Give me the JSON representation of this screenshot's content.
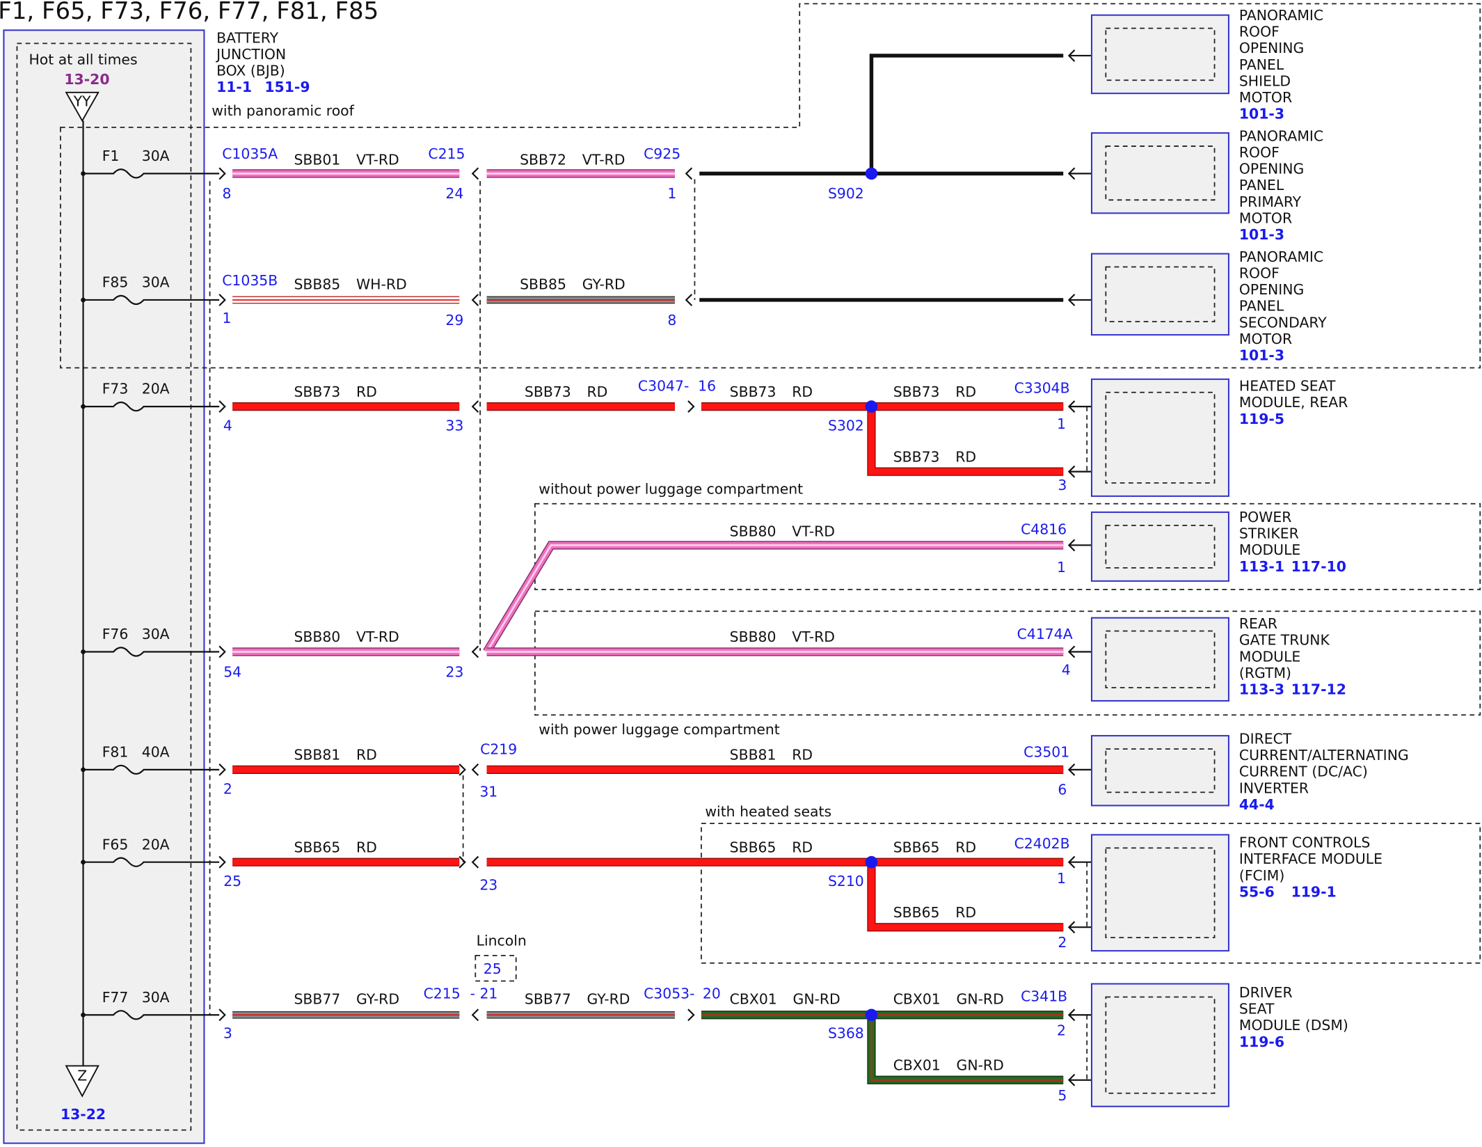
{
  "title": "F1, F65, F73, F76, F77, F81, F85",
  "fuse_box": {
    "name_lines": [
      "BATTERY",
      "JUNCTION",
      "BOX (BJB)"
    ],
    "refs": [
      "11-1",
      "151-9"
    ],
    "feed": "Hot at all times",
    "feed_ref": "13-20",
    "top_symbol": "YY",
    "bottom_symbol": "Z",
    "ground_ref": "13-22"
  },
  "notes": [
    "with panoramic roof",
    "without power luggage compartment",
    "with power luggage compartment",
    "with heated seats"
  ],
  "variant": {
    "label": "Lincoln",
    "pin": "25"
  },
  "fuses": [
    {
      "name": "F1",
      "rating": "30A"
    },
    {
      "name": "F85",
      "rating": "30A"
    },
    {
      "name": "F73",
      "rating": "20A"
    },
    {
      "name": "F76",
      "rating": "30A"
    },
    {
      "name": "F81",
      "rating": "40A"
    },
    {
      "name": "F65",
      "rating": "20A"
    },
    {
      "name": "F77",
      "rating": "30A"
    }
  ],
  "connectors": [
    "C1035A",
    "C215",
    "C925",
    "C1035B",
    "C3047-",
    "C3304B",
    "C4816",
    "C4174A",
    "C219",
    "C3501",
    "C2402B",
    "C215",
    "C3053-",
    "C341B"
  ],
  "pins": [
    "8",
    "24",
    "1",
    "1",
    "29",
    "8",
    "4",
    "33",
    "16",
    "1",
    "3",
    "1",
    "54",
    "23",
    "4",
    "2",
    "31",
    "6",
    "25",
    "23",
    "1",
    "2",
    "3",
    "- 21",
    "20",
    "2",
    "5"
  ],
  "splices": [
    "S902",
    "S302",
    "S210",
    "S368"
  ],
  "wires": [
    {
      "circuit": "SBB01",
      "color": "VT-RD"
    },
    {
      "circuit": "SBB72",
      "color": "VT-RD"
    },
    {
      "circuit": "SBB85",
      "color": "WH-RD"
    },
    {
      "circuit": "SBB85",
      "color": "GY-RD"
    },
    {
      "circuit": "SBB73",
      "color": "RD"
    },
    {
      "circuit": "SBB73",
      "color": "RD"
    },
    {
      "circuit": "SBB73",
      "color": "RD"
    },
    {
      "circuit": "SBB73",
      "color": "RD"
    },
    {
      "circuit": "SBB73",
      "color": "RD"
    },
    {
      "circuit": "SBB80",
      "color": "VT-RD"
    },
    {
      "circuit": "SBB80",
      "color": "VT-RD"
    },
    {
      "circuit": "SBB80",
      "color": "VT-RD"
    },
    {
      "circuit": "SBB81",
      "color": "RD"
    },
    {
      "circuit": "SBB81",
      "color": "RD"
    },
    {
      "circuit": "SBB65",
      "color": "RD"
    },
    {
      "circuit": "SBB65",
      "color": "RD"
    },
    {
      "circuit": "SBB65",
      "color": "RD"
    },
    {
      "circuit": "SBB65",
      "color": "RD"
    },
    {
      "circuit": "SBB77",
      "color": "GY-RD"
    },
    {
      "circuit": "SBB77",
      "color": "GY-RD"
    },
    {
      "circuit": "CBX01",
      "color": "GN-RD"
    },
    {
      "circuit": "CBX01",
      "color": "GN-RD"
    },
    {
      "circuit": "CBX01",
      "color": "GN-RD"
    }
  ],
  "modules": [
    {
      "name_lines": [
        "PANORAMIC",
        "ROOF",
        "OPENING",
        "PANEL",
        "SHIELD",
        "MOTOR"
      ],
      "refs": [
        "101-3"
      ]
    },
    {
      "name_lines": [
        "PANORAMIC",
        "ROOF",
        "OPENING",
        "PANEL",
        "PRIMARY",
        "MOTOR"
      ],
      "refs": [
        "101-3"
      ]
    },
    {
      "name_lines": [
        "PANORAMIC",
        "ROOF",
        "OPENING",
        "PANEL",
        "SECONDARY",
        "MOTOR"
      ],
      "refs": [
        "101-3"
      ]
    },
    {
      "name_lines": [
        "HEATED SEAT",
        "MODULE, REAR"
      ],
      "refs": [
        "119-5"
      ]
    },
    {
      "name_lines": [
        "POWER",
        "STRIKER",
        "MODULE"
      ],
      "refs": [
        "113-1",
        "117-10"
      ]
    },
    {
      "name_lines": [
        "REAR",
        "GATE TRUNK",
        "MODULE",
        "(RGTM)"
      ],
      "refs": [
        "113-3",
        "117-12"
      ]
    },
    {
      "name_lines": [
        "DIRECT",
        "CURRENT/ALTERNATING",
        "CURRENT (DC/AC)",
        "INVERTER"
      ],
      "refs": [
        "44-4"
      ]
    },
    {
      "name_lines": [
        "FRONT CONTROLS",
        "INTERFACE MODULE",
        "(FCIM)"
      ],
      "refs": [
        "55-6",
        "119-1"
      ]
    },
    {
      "name_lines": [
        "DRIVER",
        "SEAT",
        "MODULE (DSM)"
      ],
      "refs": [
        "119-6"
      ]
    }
  ]
}
